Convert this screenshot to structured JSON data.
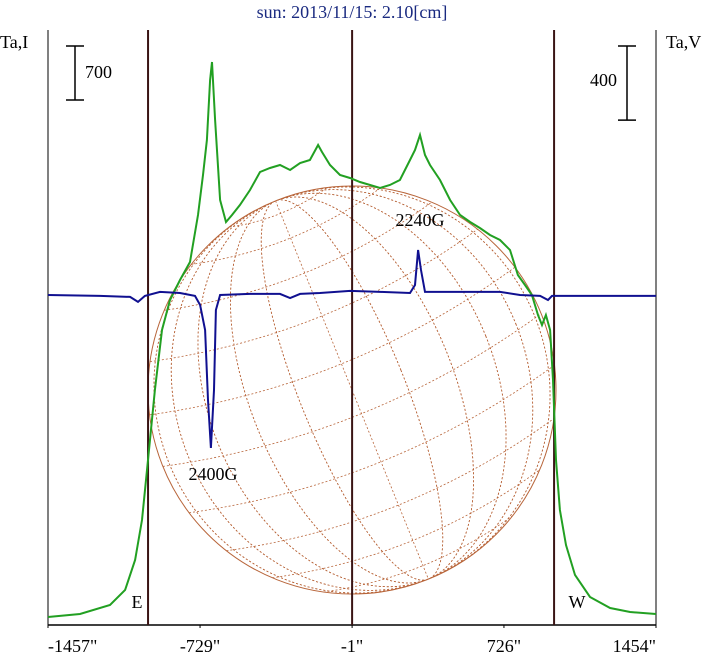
{
  "chart_data": {
    "type": "line",
    "title": "sun: 2013/11/15: 2.10[cm]",
    "ylabel": "Ta,I",
    "y2label": "Ta,V",
    "xlim": [
      -1457,
      1454
    ],
    "xticks": [
      {
        "value": -1457,
        "label": "-1457\""
      },
      {
        "value": -729,
        "label": "-729\""
      },
      {
        "value": -1,
        "label": "-1\""
      },
      {
        "value": 726,
        "label": "726\""
      },
      {
        "value": 1454,
        "label": "1454\""
      }
    ],
    "ylim": [
      0,
      7711
    ],
    "y2lim": [
      -1777,
      1436
    ],
    "vlines": [
      -978,
      -1,
      966
    ],
    "vline_color": "#3a1414",
    "scale_bars": [
      {
        "value": 700,
        "axis": "y"
      },
      {
        "value": 400,
        "axis": "y2"
      }
    ],
    "annotations": [
      {
        "text": "2400G"
      },
      {
        "text": "2240G"
      },
      {
        "text": "E"
      },
      {
        "text": "W"
      }
    ],
    "series": [
      {
        "color": "#22a022",
        "x": [
          -1457,
          -1304,
          -1160,
          -1088,
          -1040,
          -1007,
          -978,
          -945,
          -911,
          -873,
          -825,
          -777,
          -739,
          -715,
          -696,
          -681,
          -672,
          -657,
          -633,
          -605,
          -576,
          -538,
          -490,
          -442,
          -394,
          -346,
          -298,
          -250,
          -203,
          -164,
          -145,
          -107,
          -59,
          -11,
          37,
          85,
          133,
          180,
          228,
          276,
          300,
          324,
          348,
          372,
          420,
          468,
          516,
          564,
          611,
          659,
          707,
          755,
          793,
          827,
          860,
          889,
          908,
          927,
          947,
          961,
          975,
          994,
          1023,
          1066,
          1138,
          1234,
          1330,
          1454
        ],
        "values": [
          104,
          143,
          259,
          454,
          842,
          1361,
          2138,
          3046,
          3823,
          4212,
          4471,
          4704,
          5314,
          5832,
          6286,
          7063,
          7296,
          6545,
          5508,
          5223,
          5314,
          5443,
          5638,
          5871,
          5923,
          5962,
          5897,
          5988,
          6026,
          6221,
          6130,
          5962,
          5832,
          5793,
          5741,
          5702,
          5664,
          5702,
          5767,
          6026,
          6156,
          6350,
          6091,
          5962,
          5767,
          5508,
          5314,
          5223,
          5145,
          5054,
          4990,
          4860,
          4536,
          4406,
          4277,
          4018,
          3888,
          4018,
          3823,
          3175,
          2138,
          1490,
          1037,
          648,
          363,
          220,
          168,
          143
        ]
      },
      {
        "color": "#101090",
        "axis": "y2",
        "x": [
          -1457,
          -1208,
          -1064,
          -1026,
          -993,
          -921,
          -825,
          -753,
          -729,
          -705,
          -691,
          -677,
          -662,
          -653,
          -633,
          -490,
          -346,
          -298,
          -250,
          -155,
          -11,
          133,
          276,
          300,
          315,
          329,
          348,
          516,
          707,
          803,
          899,
          937,
          956,
          975,
          1186,
          1454
        ],
        "values": [
          5,
          0,
          -5,
          -32,
          0,
          22,
          16,
          0,
          -49,
          -184,
          -562,
          -821,
          -508,
          -76,
          5,
          11,
          11,
          -11,
          11,
          16,
          27,
          22,
          16,
          59,
          248,
          140,
          22,
          22,
          22,
          5,
          0,
          -22,
          0,
          0,
          0,
          0
        ]
      }
    ]
  }
}
